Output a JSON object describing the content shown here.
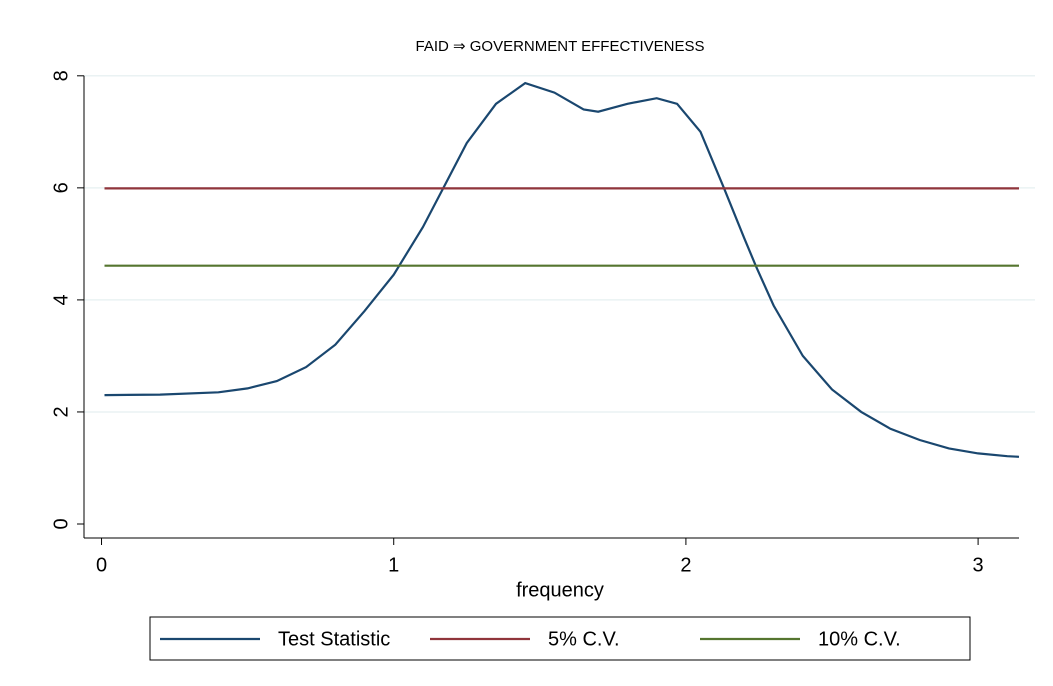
{
  "chart_data": {
    "type": "line",
    "title": "FAID ⇒ GOVERNMENT EFFECTIVENESS",
    "xlabel": "frequency",
    "xlim": [
      -0.06,
      3.14
    ],
    "ylim": [
      -0.25,
      8.3
    ],
    "xticks": [
      0,
      1,
      2,
      3
    ],
    "yticks": [
      0,
      2,
      4,
      6,
      8
    ],
    "grid": true,
    "legend": "bottom",
    "series": [
      {
        "name": "Test Statistic",
        "color": "#1a476f",
        "x": [
          0.01,
          0.2,
          0.4,
          0.5,
          0.6,
          0.7,
          0.8,
          0.9,
          1.0,
          1.1,
          1.17,
          1.25,
          1.35,
          1.45,
          1.55,
          1.65,
          1.7,
          1.8,
          1.9,
          1.97,
          2.05,
          2.13,
          2.2,
          2.24,
          2.3,
          2.4,
          2.5,
          2.6,
          2.7,
          2.8,
          2.9,
          3.0,
          3.1,
          3.14
        ],
        "values": [
          2.3,
          2.31,
          2.35,
          2.42,
          2.55,
          2.8,
          3.2,
          3.8,
          4.45,
          5.3,
          6.0,
          6.8,
          7.5,
          7.87,
          7.7,
          7.4,
          7.36,
          7.5,
          7.6,
          7.5,
          7.0,
          6.0,
          5.1,
          4.6,
          3.9,
          3.0,
          2.4,
          2.0,
          1.7,
          1.5,
          1.35,
          1.26,
          1.21,
          1.2
        ]
      },
      {
        "name": "5% C.V.",
        "color": "#90353b",
        "x": [
          0.01,
          3.14
        ],
        "values": [
          5.99,
          5.99
        ]
      },
      {
        "name": "10% C.V.",
        "color": "#55752f",
        "x": [
          0.01,
          3.14
        ],
        "values": [
          4.61,
          4.61
        ]
      }
    ]
  }
}
